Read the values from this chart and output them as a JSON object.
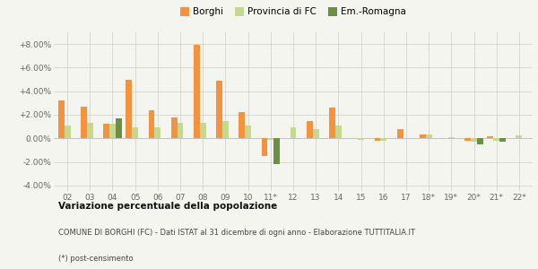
{
  "categories": [
    "02",
    "03",
    "04",
    "05",
    "06",
    "07",
    "08",
    "09",
    "10",
    "11*",
    "12",
    "13",
    "14",
    "15",
    "16",
    "17",
    "18*",
    "19*",
    "20*",
    "21*",
    "22*"
  ],
  "borghi": [
    3.2,
    2.7,
    1.2,
    5.0,
    2.4,
    1.8,
    7.9,
    4.9,
    2.2,
    -1.5,
    0.0,
    1.5,
    2.6,
    0.0,
    -0.2,
    0.8,
    0.3,
    0.0,
    -0.2,
    0.15,
    0.0
  ],
  "provincia": [
    1.1,
    1.3,
    1.2,
    0.9,
    0.9,
    1.3,
    1.35,
    1.45,
    1.1,
    -0.1,
    0.9,
    0.75,
    1.1,
    -0.1,
    -0.2,
    0.0,
    0.3,
    0.1,
    -0.3,
    -0.2,
    0.25
  ],
  "emromagna": [
    0.0,
    0.0,
    1.7,
    0.0,
    0.0,
    0.0,
    0.0,
    0.0,
    0.0,
    -2.2,
    0.0,
    0.0,
    0.0,
    0.0,
    0.0,
    0.0,
    0.0,
    0.0,
    -0.5,
    -0.3,
    0.0
  ],
  "color_borghi": "#f5923e",
  "color_provincia": "#c5d98d",
  "color_emromagna": "#6b8f47",
  "title_bold": "Variazione percentuale della popolazione",
  "subtitle": "COMUNE DI BORGHI (FC) - Dati ISTAT al 31 dicembre di ogni anno - Elaborazione TUTTITALIA.IT",
  "footnote": "(*) post-censimento",
  "ylim": [
    -4.5,
    9.0
  ],
  "yticks": [
    -4.0,
    -2.0,
    0.0,
    2.0,
    4.0,
    6.0,
    8.0
  ],
  "ytick_labels": [
    "-4.00%",
    "-2.00%",
    "0.00%",
    "+2.00%",
    "+4.00%",
    "+6.00%",
    "+8.00%"
  ],
  "bg_color": "#f5f5f0",
  "legend_labels": [
    "Borghi",
    "Provincia di FC",
    "Em.-Romagna"
  ]
}
